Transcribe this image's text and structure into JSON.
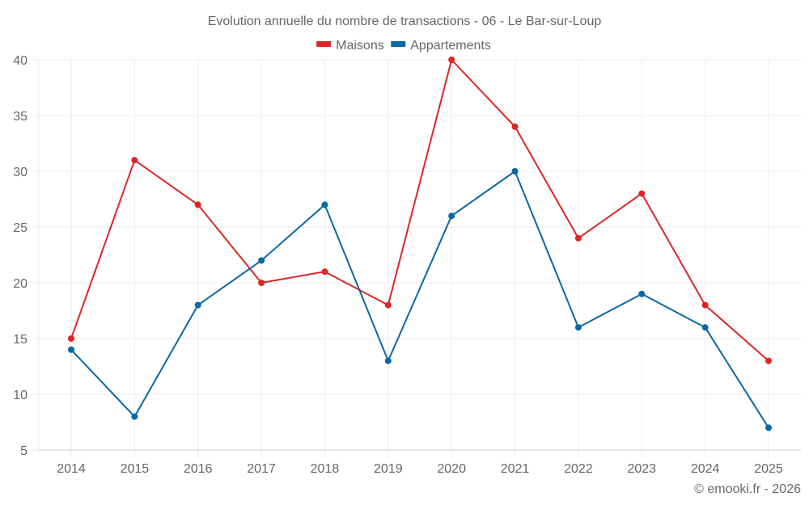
{
  "chart_data": {
    "type": "line",
    "title": "Evolution annuelle du nombre de transactions - 06 - Le Bar-sur-Loup",
    "xlabel": "",
    "ylabel": "",
    "categories": [
      "2014",
      "2015",
      "2016",
      "2017",
      "2018",
      "2019",
      "2020",
      "2021",
      "2022",
      "2023",
      "2024",
      "2025"
    ],
    "series": [
      {
        "name": "Maisons",
        "color": "#dc2626",
        "values": [
          15,
          31,
          27,
          20,
          21,
          18,
          40,
          34,
          24,
          28,
          18,
          13
        ]
      },
      {
        "name": "Appartements",
        "color": "#0868a4",
        "values": [
          14,
          8,
          18,
          22,
          27,
          13,
          26,
          30,
          16,
          19,
          16,
          7
        ]
      }
    ],
    "ylim": [
      5,
      40
    ],
    "yticks": [
      5,
      10,
      15,
      20,
      25,
      30,
      35,
      40
    ],
    "grid": true,
    "legend_position": "top-center",
    "footer": "© emooki.fr - 2026"
  }
}
